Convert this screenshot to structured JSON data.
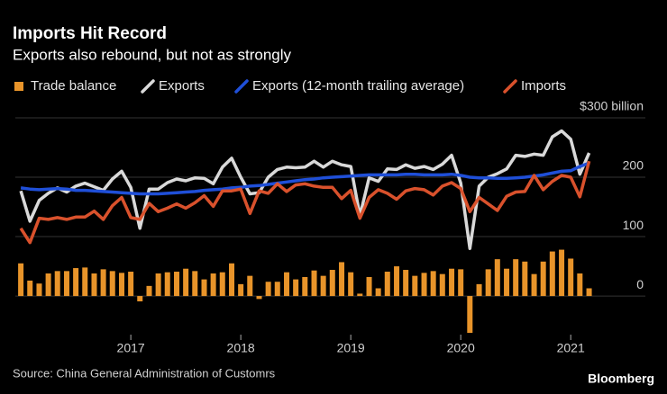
{
  "chart_data": {
    "type": "line",
    "title": "Imports Hit Record",
    "subtitle": "Exports also rebound, but not as strongly",
    "source": "Source: China General Administration of Customrs",
    "brand": "Bloomberg",
    "x": [
      2016.0,
      2016.083,
      2016.167,
      2016.25,
      2016.333,
      2016.417,
      2016.5,
      2016.583,
      2016.667,
      2016.75,
      2016.833,
      2016.917,
      2017.0,
      2017.083,
      2017.167,
      2017.25,
      2017.333,
      2017.417,
      2017.5,
      2017.583,
      2017.667,
      2017.75,
      2017.833,
      2017.917,
      2018.0,
      2018.083,
      2018.167,
      2018.25,
      2018.333,
      2018.417,
      2018.5,
      2018.583,
      2018.667,
      2018.75,
      2018.833,
      2018.917,
      2019.0,
      2019.083,
      2019.167,
      2019.25,
      2019.333,
      2019.417,
      2019.5,
      2019.583,
      2019.667,
      2019.75,
      2019.833,
      2019.917,
      2020.0,
      2020.083,
      2020.167,
      2020.25,
      2020.333,
      2020.417,
      2020.5,
      2020.583,
      2020.667,
      2020.75,
      2020.833,
      2020.917,
      2021.0,
      2021.083,
      2021.167
    ],
    "xlim": [
      2015.95,
      2021.4
    ],
    "xticks": [
      2017,
      2018,
      2019,
      2020,
      2021
    ],
    "ylim": [
      -65,
      300
    ],
    "yticks": [
      0,
      100,
      200,
      {
        "value": 300,
        "label": "$300 billion"
      }
    ],
    "series": [
      {
        "name": "Trade balance",
        "type": "bar",
        "color": "#e8942a",
        "values": [
          55,
          26,
          21,
          38,
          42,
          42,
          47,
          48,
          38,
          45,
          42,
          39,
          41,
          -9,
          17,
          38,
          40,
          41,
          46,
          42,
          28,
          38,
          40,
          55,
          20,
          34,
          -5,
          24,
          24,
          40,
          28,
          32,
          43,
          34,
          44,
          57,
          40,
          4,
          32,
          13,
          41,
          50,
          44,
          34,
          39,
          42,
          37,
          46,
          45,
          -62,
          20,
          45,
          62,
          46,
          62,
          58,
          37,
          58,
          75,
          78,
          63,
          38,
          13
        ]
      },
      {
        "name": "Exports",
        "type": "line",
        "color": "#d9d9d9",
        "values": [
          177,
          126,
          161,
          173,
          182,
          175,
          185,
          190,
          184,
          178,
          197,
          210,
          183,
          114,
          180,
          180,
          191,
          197,
          194,
          199,
          198,
          189,
          217,
          232,
          200,
          172,
          174,
          200,
          213,
          217,
          216,
          217,
          227,
          217,
          227,
          221,
          218,
          135,
          199,
          193,
          214,
          213,
          221,
          215,
          218,
          213,
          222,
          237,
          190,
          80,
          185,
          200,
          206,
          214,
          237,
          235,
          239,
          237,
          268,
          278,
          264,
          205,
          241
        ]
      },
      {
        "name": "Exports (12-month trailing average)",
        "type": "line",
        "color": "#1f4fd8",
        "values": [
          182,
          180,
          179,
          180,
          181,
          180,
          178,
          178,
          177,
          176,
          175,
          174,
          173,
          172,
          172,
          172,
          173,
          174,
          175,
          176,
          178,
          179,
          180,
          182,
          183,
          185,
          186,
          188,
          190,
          192,
          194,
          196,
          197,
          199,
          200,
          201,
          202,
          203,
          204,
          204,
          204,
          204,
          205,
          205,
          204,
          204,
          204,
          205,
          203,
          200,
          199,
          199,
          198,
          198,
          199,
          200,
          202,
          204,
          207,
          210,
          211,
          218,
          224
        ]
      },
      {
        "name": "Imports",
        "type": "line",
        "color": "#d9512c",
        "values": [
          114,
          90,
          131,
          129,
          132,
          129,
          133,
          133,
          143,
          129,
          152,
          166,
          132,
          129,
          156,
          142,
          148,
          155,
          148,
          157,
          169,
          151,
          177,
          177,
          180,
          139,
          177,
          173,
          189,
          176,
          187,
          189,
          185,
          183,
          183,
          164,
          178,
          131,
          166,
          179,
          173,
          163,
          177,
          181,
          179,
          170,
          185,
          191,
          181,
          142,
          166,
          155,
          144,
          168,
          175,
          176,
          203,
          179,
          193,
          203,
          200,
          167,
          227
        ]
      }
    ]
  }
}
